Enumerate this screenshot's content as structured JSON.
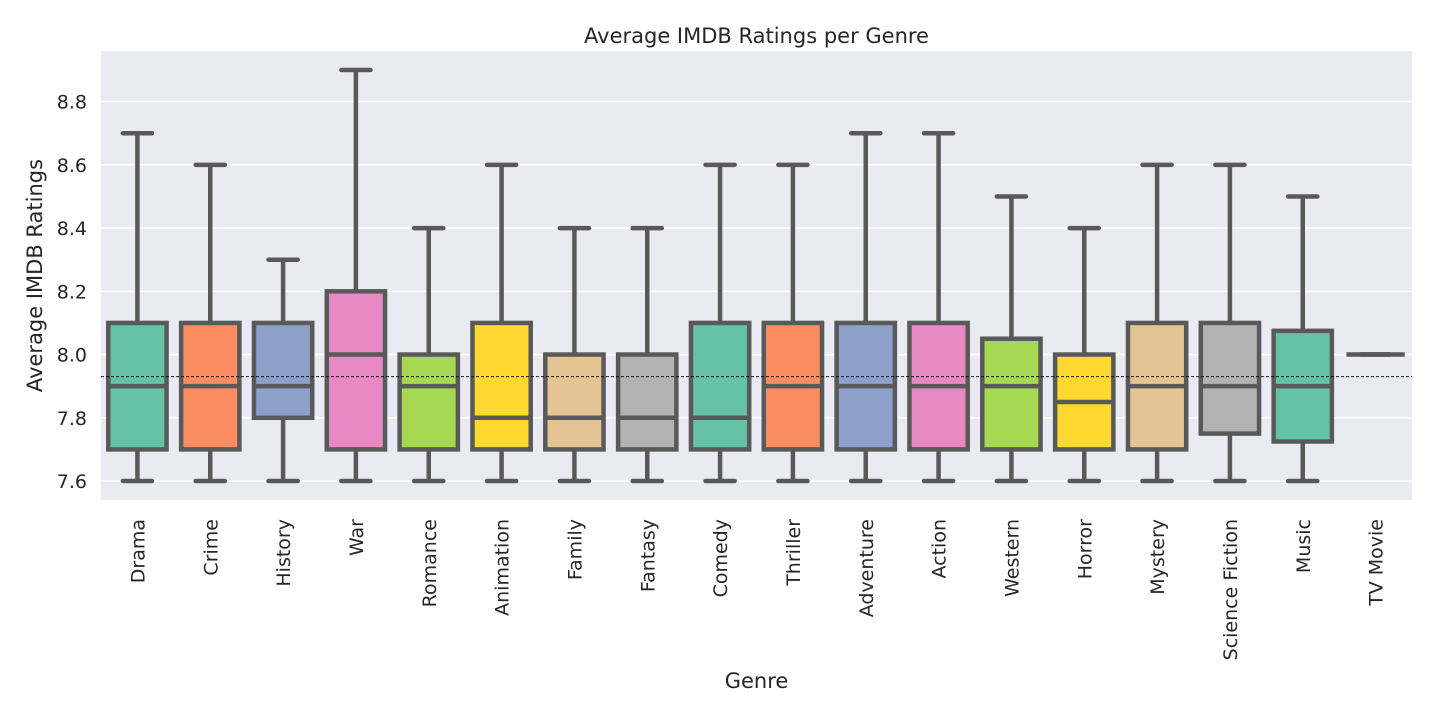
{
  "chart_data": {
    "type": "box",
    "title": "Average IMDB Ratings per Genre",
    "xlabel": "Genre",
    "ylabel": "Average IMDB Ratings",
    "ylim": [
      7.54,
      8.96
    ],
    "yticks": [
      7.6,
      7.8,
      8.0,
      8.2,
      8.4,
      8.6,
      8.8
    ],
    "grid": true,
    "reference_line": 7.93,
    "categories": [
      "Drama",
      "Crime",
      "History",
      "War",
      "Romance",
      "Animation",
      "Family",
      "Fantasy",
      "Comedy",
      "Thriller",
      "Adventure",
      "Action",
      "Western",
      "Horror",
      "Mystery",
      "Science Fiction",
      "Music",
      "TV Movie"
    ],
    "boxes": [
      {
        "min": 7.6,
        "q1": 7.7,
        "median": 7.9,
        "q3": 8.1,
        "max": 8.7,
        "color": "#66c2a5"
      },
      {
        "min": 7.6,
        "q1": 7.7,
        "median": 7.9,
        "q3": 8.1,
        "max": 8.6,
        "color": "#fc8d62"
      },
      {
        "min": 7.6,
        "q1": 7.8,
        "median": 7.9,
        "q3": 8.1,
        "max": 8.3,
        "color": "#8da0cb"
      },
      {
        "min": 7.6,
        "q1": 7.7,
        "median": 8.0,
        "q3": 8.2,
        "max": 8.9,
        "color": "#e78ac3"
      },
      {
        "min": 7.6,
        "q1": 7.7,
        "median": 7.9,
        "q3": 8.0,
        "max": 8.4,
        "color": "#a6d854"
      },
      {
        "min": 7.6,
        "q1": 7.7,
        "median": 7.8,
        "q3": 8.1,
        "max": 8.6,
        "color": "#ffd92f"
      },
      {
        "min": 7.6,
        "q1": 7.7,
        "median": 7.8,
        "q3": 8.0,
        "max": 8.4,
        "color": "#e5c494"
      },
      {
        "min": 7.6,
        "q1": 7.7,
        "median": 7.8,
        "q3": 8.0,
        "max": 8.4,
        "color": "#b3b3b3"
      },
      {
        "min": 7.6,
        "q1": 7.7,
        "median": 7.8,
        "q3": 8.1,
        "max": 8.6,
        "color": "#66c2a5"
      },
      {
        "min": 7.6,
        "q1": 7.7,
        "median": 7.9,
        "q3": 8.1,
        "max": 8.6,
        "color": "#fc8d62"
      },
      {
        "min": 7.6,
        "q1": 7.7,
        "median": 7.9,
        "q3": 8.1,
        "max": 8.7,
        "color": "#8da0cb"
      },
      {
        "min": 7.6,
        "q1": 7.7,
        "median": 7.9,
        "q3": 8.1,
        "max": 8.7,
        "color": "#e78ac3"
      },
      {
        "min": 7.6,
        "q1": 7.7,
        "median": 7.9,
        "q3": 8.05,
        "max": 8.5,
        "color": "#a6d854"
      },
      {
        "min": 7.6,
        "q1": 7.7,
        "median": 7.85,
        "q3": 8.0,
        "max": 8.4,
        "color": "#ffd92f"
      },
      {
        "min": 7.6,
        "q1": 7.7,
        "median": 7.9,
        "q3": 8.1,
        "max": 8.6,
        "color": "#e5c494"
      },
      {
        "min": 7.6,
        "q1": 7.75,
        "median": 7.9,
        "q3": 8.1,
        "max": 8.6,
        "color": "#b3b3b3"
      },
      {
        "min": 7.6,
        "q1": 7.725,
        "median": 7.9,
        "q3": 8.075,
        "max": 8.5,
        "color": "#66c2a5"
      },
      {
        "min": 8.0,
        "q1": 8.0,
        "median": 8.0,
        "q3": 8.0,
        "max": 8.0,
        "color": "#fc8d62"
      }
    ],
    "colors": {
      "background": "#eaeaf2",
      "grid": "#ffffff",
      "box_edge": "#595959",
      "reference_line": "#000000"
    }
  }
}
